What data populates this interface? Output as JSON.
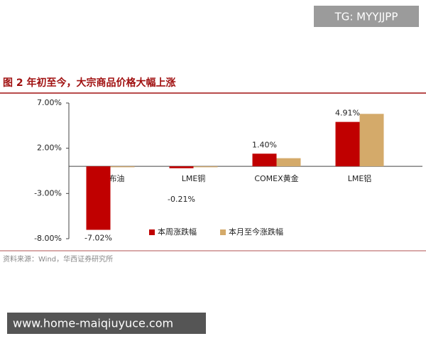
{
  "watermark": "TG: MYYJJPP",
  "url_banner": "www.home-maiqiuyuce.com",
  "chart_data": {
    "type": "bar",
    "title": "图 2  年初至今，大宗商品价格大幅上涨",
    "source": "资料来源：Wind，华西证券研究所",
    "categories": [
      "ICE布油",
      "LME铜",
      "COMEX黄金",
      "LME铝"
    ],
    "series": [
      {
        "name": "本周涨跌幅",
        "color": "#c00000",
        "values": [
          -7.02,
          -0.21,
          1.4,
          4.91
        ],
        "value_labels": [
          "-7.02%",
          "-0.21%",
          "1.40%",
          "4.91%"
        ]
      },
      {
        "name": "本月至今涨跌幅",
        "color": "#d4aa6a",
        "values": [
          -0.1,
          -0.1,
          0.9,
          5.8
        ]
      }
    ],
    "ylim": [
      -8,
      7
    ],
    "yticks": [
      {
        "value": 7,
        "label": "7.00%"
      },
      {
        "value": 2,
        "label": "2.00%"
      },
      {
        "value": -3,
        "label": "-3.00%"
      },
      {
        "value": -8,
        "label": "-8.00%"
      }
    ],
    "grid": false,
    "legend": "bottom-right"
  }
}
